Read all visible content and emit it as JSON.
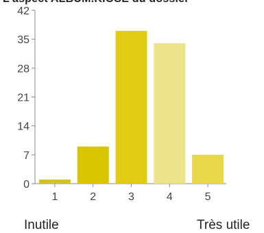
{
  "header": {
    "clipped_title": "L'aspect ALBUM.KIOSE du dossier"
  },
  "scale": {
    "min_label": "Inutile",
    "max_label": "Très utile"
  },
  "colors": {
    "axis": "#888888",
    "tick_text": "#444444",
    "bar_colors": [
      "#d2c22a",
      "#d9c600",
      "#e0cc14",
      "#ede38a",
      "#e8d84a"
    ]
  },
  "chart_data": {
    "type": "bar",
    "title": "",
    "xlabel": "",
    "ylabel": "",
    "categories": [
      "1",
      "2",
      "3",
      "4",
      "5"
    ],
    "values": [
      1,
      9,
      37,
      34,
      7
    ],
    "ylim": [
      0,
      42
    ],
    "yticks": [
      0,
      7,
      14,
      21,
      28,
      35,
      42
    ],
    "grid": false,
    "legend": "none"
  }
}
